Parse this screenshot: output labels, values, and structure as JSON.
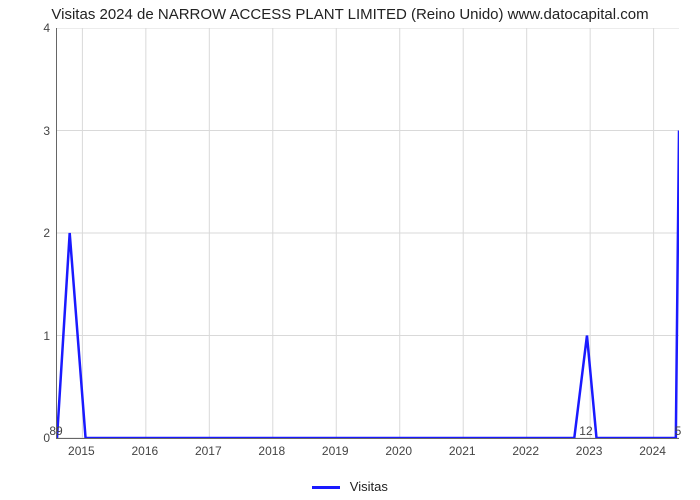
{
  "chart": {
    "type": "line",
    "title": "Visitas 2024 de NARROW ACCESS PLANT LIMITED (Reino Unido) www.datocapital.com",
    "title_fontsize": 15,
    "background_color": "#ffffff",
    "grid_color": "#d9d9d9",
    "axis_color": "#666666",
    "tick_font_size": 12,
    "xlim": [
      2014.6,
      2024.4
    ],
    "ylim": [
      0,
      4
    ],
    "ytick_step": 1,
    "yticks": [
      0,
      1,
      2,
      3,
      4
    ],
    "xticks": [
      2015,
      2016,
      2017,
      2018,
      2019,
      2020,
      2021,
      2022,
      2023,
      2024
    ],
    "x_values": [
      2014.6,
      2014.8,
      2015.05,
      2022.75,
      2022.95,
      2023.1,
      2024.35,
      2024.4
    ],
    "y_values": [
      0,
      2,
      0,
      0,
      1,
      0,
      0,
      3
    ],
    "line_color": "#1a1aff",
    "line_width": 2.5,
    "below_axis_labels": [
      {
        "x": 2014.6,
        "text": "89"
      },
      {
        "x": 2022.95,
        "text": "12"
      },
      {
        "x": 2024.4,
        "text": "5"
      }
    ],
    "legend": {
      "label": "Visitas",
      "color": "#1a1aff"
    }
  }
}
